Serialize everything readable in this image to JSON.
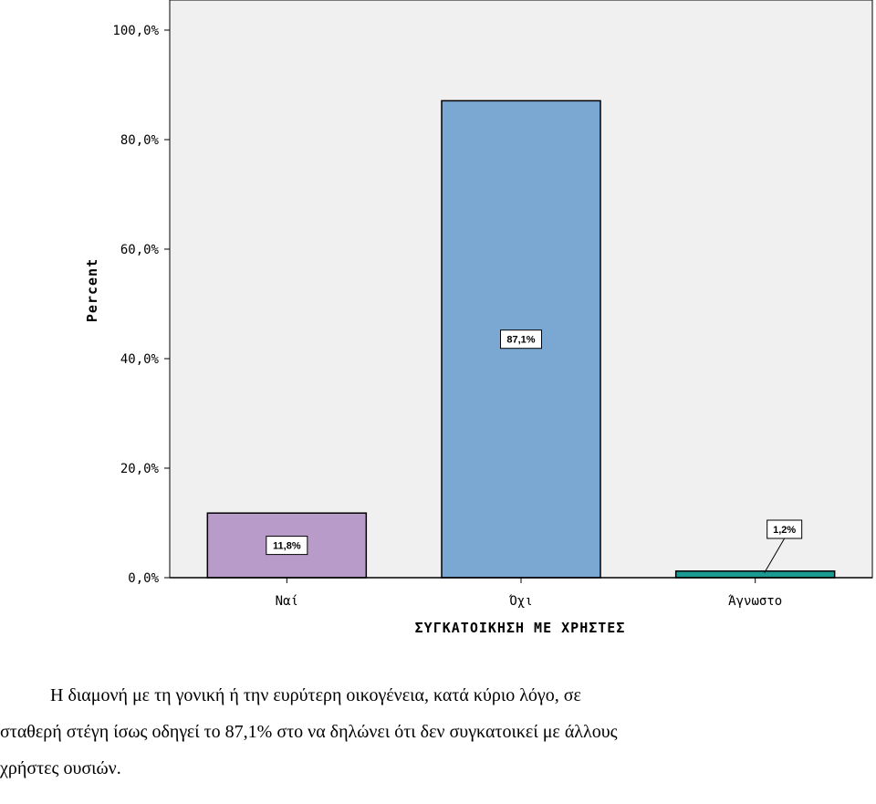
{
  "chart_data": {
    "type": "bar",
    "categories": [
      "Ναί",
      "Όχι",
      "Άγνωστο"
    ],
    "values": [
      11.8,
      87.1,
      1.2
    ],
    "data_labels": [
      "11,8%",
      "87,1%",
      "1,2%"
    ],
    "colors": [
      "#b99bca",
      "#7ba7d3",
      "#1a9a91"
    ],
    "ylabel": "Percent",
    "xlabel": "ΣΥΓΚΑΤΟΙΚΗΣΗ ΜΕ ΧΡΗΣΤΕΣ",
    "ylim": [
      0,
      100
    ],
    "yticks": [
      0,
      20,
      40,
      60,
      80,
      100
    ],
    "ytick_labels": [
      "0,0%",
      "20,0%",
      "40,0%",
      "60,0%",
      "80,0%",
      "100,0%"
    ],
    "grid": false,
    "background": "#f0f0f0"
  },
  "caption": {
    "line1": "Η διαμονή με τη γονική ή την ευρύτερη οικογένεια, κατά κύριο λόγο, σε",
    "line2": "σταθερή στέγη ίσως οδηγεί το 87,1% στο να δηλώνει ότι δεν συγκατοικεί με άλλους",
    "line3": "χρήστες ουσιών."
  }
}
